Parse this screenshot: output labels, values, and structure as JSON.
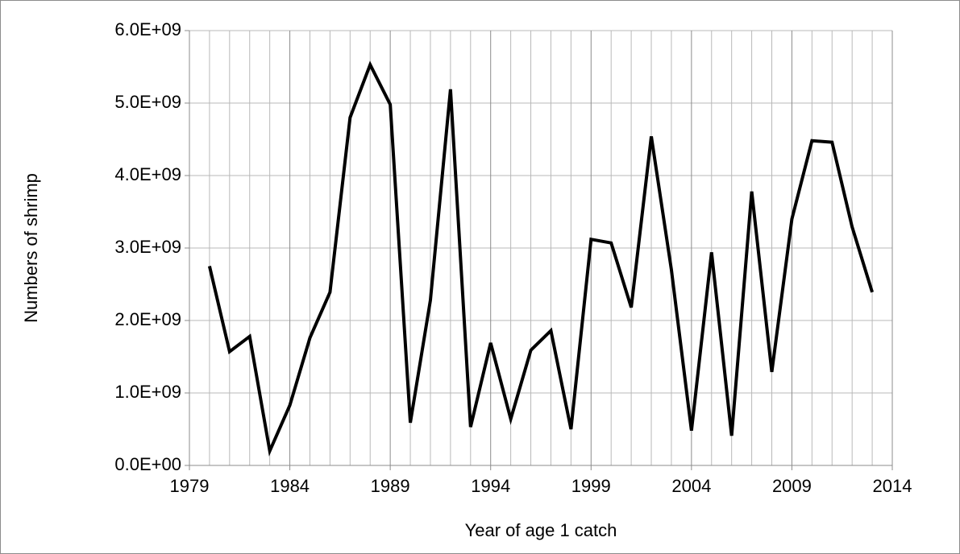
{
  "chart_data": {
    "type": "line",
    "xlabel": "Year of age 1 catch",
    "ylabel": "Numbers of shrimp",
    "x": [
      1980,
      1981,
      1982,
      1983,
      1984,
      1985,
      1986,
      1987,
      1988,
      1989,
      1990,
      1991,
      1992,
      1993,
      1994,
      1995,
      1996,
      1997,
      1998,
      1999,
      2000,
      2001,
      2002,
      2003,
      2004,
      2005,
      2006,
      2007,
      2008,
      2009,
      2010,
      2011,
      2012,
      2013
    ],
    "series": [
      {
        "color": "#000000",
        "values": [
          2750000000,
          1570000000,
          1780000000,
          200000000,
          830000000,
          1760000000,
          2390000000,
          4800000000,
          5530000000,
          4980000000,
          590000000,
          2280000000,
          5190000000,
          530000000,
          1690000000,
          640000000,
          1590000000,
          1860000000,
          500000000,
          3120000000,
          3070000000,
          2180000000,
          4540000000,
          2700000000,
          480000000,
          2940000000,
          410000000,
          3780000000,
          1290000000,
          3400000000,
          4480000000,
          4460000000,
          3290000000,
          2390000000
        ]
      }
    ],
    "xlim": [
      1979,
      2014
    ],
    "ylim": [
      0,
      6000000000
    ],
    "xticks": [
      1979,
      1984,
      1989,
      1994,
      1999,
      2004,
      2009,
      2014
    ],
    "xminorticks": [
      1980,
      1981,
      1982,
      1983,
      1985,
      1986,
      1987,
      1988,
      1990,
      1991,
      1992,
      1993,
      1995,
      1996,
      1997,
      1998,
      2000,
      2001,
      2002,
      2003,
      2005,
      2006,
      2007,
      2008,
      2010,
      2011,
      2012,
      2013
    ],
    "yticks": [
      {
        "value": 0,
        "label": "0.0E+00"
      },
      {
        "value": 1000000000,
        "label": "1.0E+09"
      },
      {
        "value": 2000000000,
        "label": "2.0E+09"
      },
      {
        "value": 3000000000,
        "label": "3.0E+09"
      },
      {
        "value": 4000000000,
        "label": "4.0E+09"
      },
      {
        "value": 5000000000,
        "label": "5.0E+09"
      },
      {
        "value": 6000000000,
        "label": "6.0E+09"
      }
    ],
    "grid": true
  }
}
